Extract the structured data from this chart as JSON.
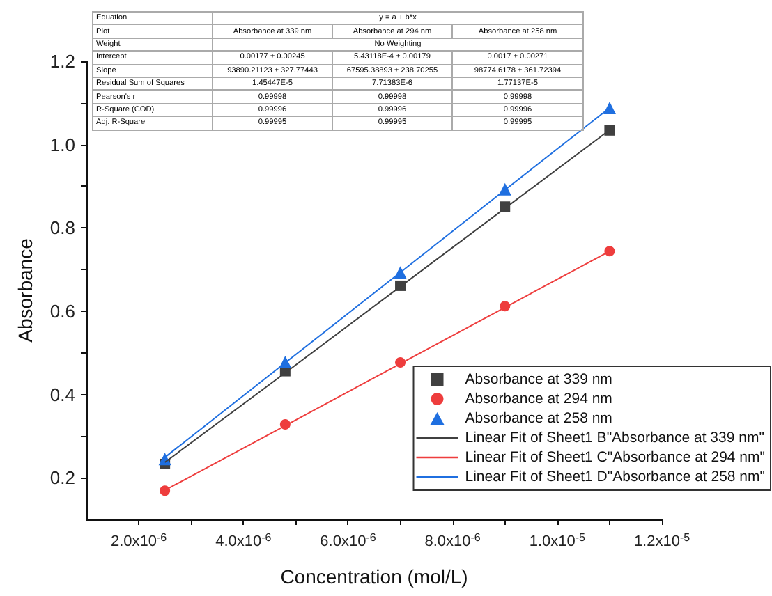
{
  "chart_data": {
    "type": "scatter",
    "xlabel": "Concentration (mol/L)",
    "ylabel": "Absorbance",
    "x": [
      2.5e-06,
      4.8e-06,
      7e-06,
      9e-06,
      1.1e-05
    ],
    "series": [
      {
        "name": "Absorbance at 339 nm",
        "color": "#404040",
        "marker": "square",
        "values": [
          0.233,
          0.456,
          0.661,
          0.851,
          1.034
        ]
      },
      {
        "name": "Absorbance at 294 nm",
        "color": "#ee3d3d",
        "marker": "circle",
        "values": [
          0.169,
          0.328,
          0.477,
          0.612,
          0.744
        ]
      },
      {
        "name": "Absorbance at 258 nm",
        "color": "#1f6fe0",
        "marker": "triangle",
        "values": [
          0.245,
          0.478,
          0.693,
          0.893,
          1.088
        ]
      },
      {
        "name": "Linear Fit of Sheet1 B\"Absorbance at 339 nm\"",
        "type": "line",
        "color": "#404040",
        "marker": "none",
        "values": [
          0.237,
          0.452,
          0.659,
          0.847,
          1.035
        ]
      },
      {
        "name": "Linear Fit of Sheet1 C\"Absorbance at 294 nm\"",
        "type": "line",
        "color": "#ee3d3d",
        "marker": "none",
        "values": [
          0.17,
          0.325,
          0.474,
          0.609,
          0.744
        ]
      },
      {
        "name": "Linear Fit of Sheet1 D\"Absorbance at 258 nm\"",
        "type": "line",
        "color": "#1f6fe0",
        "marker": "none",
        "values": [
          0.249,
          0.476,
          0.693,
          0.891,
          1.088
        ]
      }
    ],
    "xlim": [
      1e-06,
      1.2e-05
    ],
    "xticks": [
      {
        "value": 2e-06,
        "label": "2.0x10$^{-6}$"
      },
      {
        "value": 3e-06,
        "label": null
      },
      {
        "value": 4e-06,
        "label": "4.0x10$^{-6}$"
      },
      {
        "value": 5e-06,
        "label": null
      },
      {
        "value": 6e-06,
        "label": "6.0x10$^{-6}$"
      },
      {
        "value": 7e-06,
        "label": null
      },
      {
        "value": 8e-06,
        "label": "8.0x10$^{-6}$"
      },
      {
        "value": 9e-06,
        "label": null
      },
      {
        "value": 1e-05,
        "label": "1.0x10$^{-5}$"
      },
      {
        "value": 1.1e-05,
        "label": null
      },
      {
        "value": 1.2e-05,
        "label": "1.2x10$^{-5}$"
      }
    ],
    "ylim": [
      0.1,
      1.2
    ],
    "yticks": [
      {
        "value": 0.2,
        "label": "0.2"
      },
      {
        "value": 0.3,
        "label": null
      },
      {
        "value": 0.4,
        "label": "0.4"
      },
      {
        "value": 0.5,
        "label": null
      },
      {
        "value": 0.6,
        "label": "0.6"
      },
      {
        "value": 0.7,
        "label": null
      },
      {
        "value": 0.8,
        "label": "0.8"
      },
      {
        "value": 0.9,
        "label": null
      },
      {
        "value": 1.0,
        "label": "1.0"
      },
      {
        "value": 1.1,
        "label": null
      },
      {
        "value": 1.2,
        "label": "1.2"
      }
    ],
    "grid": false,
    "legend": "bottom right",
    "line_style": "solid",
    "annotations": [
      "Equation",
      "y = a + b*x",
      "Plot",
      "Absorbance at 339 nm",
      "Absorbance at 294 nm",
      "Absorbance at 258 nm",
      "Weight",
      "No Weighting",
      "Intercept",
      "0.00177 ± 0.00245",
      "5.43118E-4 ± 0.00179",
      "0.0017 ± 0.00271",
      "Slope",
      "93890.21123 ± 327.77443",
      "67595.38893 ± 238.70255",
      "98774.6178 ± 361.72394",
      "Residual Sum of Squares",
      "1.45447E-5",
      "7.71383E-6",
      "1.77137E-5",
      "Pearson's r",
      "0.99998",
      "0.99998",
      "0.99998",
      "R-Square (COD)",
      "0.99996",
      "0.99996",
      "0.99996",
      "Adj. R-Square",
      "0.99995",
      "0.99995",
      "0.99995"
    ]
  }
}
